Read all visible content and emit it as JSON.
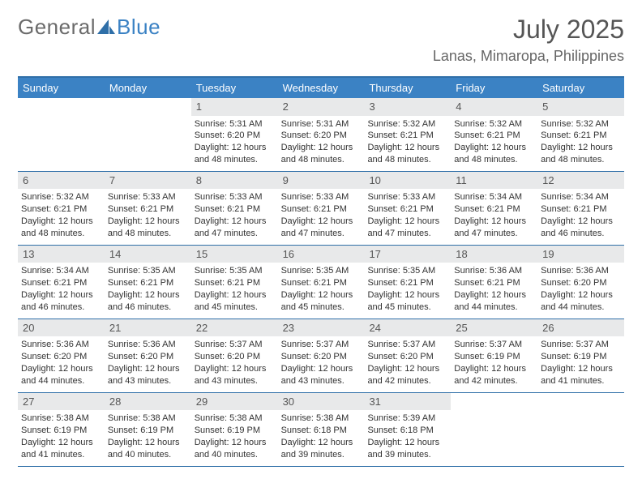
{
  "logo": {
    "word1": "General",
    "word2": "Blue"
  },
  "title": "July 2025",
  "location": "Lanas, Mimaropa, Philippines",
  "colors": {
    "header_bg": "#3b82c4",
    "header_text": "#ffffff",
    "daynum_bg": "#e8e9ea",
    "border": "#2f6fa8",
    "body_text": "#333333"
  },
  "weekdays": [
    "Sunday",
    "Monday",
    "Tuesday",
    "Wednesday",
    "Thursday",
    "Friday",
    "Saturday"
  ],
  "weeks": [
    [
      null,
      null,
      {
        "n": "1",
        "sr": "5:31 AM",
        "ss": "6:20 PM",
        "dl": "12 hours and 48 minutes."
      },
      {
        "n": "2",
        "sr": "5:31 AM",
        "ss": "6:20 PM",
        "dl": "12 hours and 48 minutes."
      },
      {
        "n": "3",
        "sr": "5:32 AM",
        "ss": "6:21 PM",
        "dl": "12 hours and 48 minutes."
      },
      {
        "n": "4",
        "sr": "5:32 AM",
        "ss": "6:21 PM",
        "dl": "12 hours and 48 minutes."
      },
      {
        "n": "5",
        "sr": "5:32 AM",
        "ss": "6:21 PM",
        "dl": "12 hours and 48 minutes."
      }
    ],
    [
      {
        "n": "6",
        "sr": "5:32 AM",
        "ss": "6:21 PM",
        "dl": "12 hours and 48 minutes."
      },
      {
        "n": "7",
        "sr": "5:33 AM",
        "ss": "6:21 PM",
        "dl": "12 hours and 48 minutes."
      },
      {
        "n": "8",
        "sr": "5:33 AM",
        "ss": "6:21 PM",
        "dl": "12 hours and 47 minutes."
      },
      {
        "n": "9",
        "sr": "5:33 AM",
        "ss": "6:21 PM",
        "dl": "12 hours and 47 minutes."
      },
      {
        "n": "10",
        "sr": "5:33 AM",
        "ss": "6:21 PM",
        "dl": "12 hours and 47 minutes."
      },
      {
        "n": "11",
        "sr": "5:34 AM",
        "ss": "6:21 PM",
        "dl": "12 hours and 47 minutes."
      },
      {
        "n": "12",
        "sr": "5:34 AM",
        "ss": "6:21 PM",
        "dl": "12 hours and 46 minutes."
      }
    ],
    [
      {
        "n": "13",
        "sr": "5:34 AM",
        "ss": "6:21 PM",
        "dl": "12 hours and 46 minutes."
      },
      {
        "n": "14",
        "sr": "5:35 AM",
        "ss": "6:21 PM",
        "dl": "12 hours and 46 minutes."
      },
      {
        "n": "15",
        "sr": "5:35 AM",
        "ss": "6:21 PM",
        "dl": "12 hours and 45 minutes."
      },
      {
        "n": "16",
        "sr": "5:35 AM",
        "ss": "6:21 PM",
        "dl": "12 hours and 45 minutes."
      },
      {
        "n": "17",
        "sr": "5:35 AM",
        "ss": "6:21 PM",
        "dl": "12 hours and 45 minutes."
      },
      {
        "n": "18",
        "sr": "5:36 AM",
        "ss": "6:21 PM",
        "dl": "12 hours and 44 minutes."
      },
      {
        "n": "19",
        "sr": "5:36 AM",
        "ss": "6:20 PM",
        "dl": "12 hours and 44 minutes."
      }
    ],
    [
      {
        "n": "20",
        "sr": "5:36 AM",
        "ss": "6:20 PM",
        "dl": "12 hours and 44 minutes."
      },
      {
        "n": "21",
        "sr": "5:36 AM",
        "ss": "6:20 PM",
        "dl": "12 hours and 43 minutes."
      },
      {
        "n": "22",
        "sr": "5:37 AM",
        "ss": "6:20 PM",
        "dl": "12 hours and 43 minutes."
      },
      {
        "n": "23",
        "sr": "5:37 AM",
        "ss": "6:20 PM",
        "dl": "12 hours and 43 minutes."
      },
      {
        "n": "24",
        "sr": "5:37 AM",
        "ss": "6:20 PM",
        "dl": "12 hours and 42 minutes."
      },
      {
        "n": "25",
        "sr": "5:37 AM",
        "ss": "6:19 PM",
        "dl": "12 hours and 42 minutes."
      },
      {
        "n": "26",
        "sr": "5:37 AM",
        "ss": "6:19 PM",
        "dl": "12 hours and 41 minutes."
      }
    ],
    [
      {
        "n": "27",
        "sr": "5:38 AM",
        "ss": "6:19 PM",
        "dl": "12 hours and 41 minutes."
      },
      {
        "n": "28",
        "sr": "5:38 AM",
        "ss": "6:19 PM",
        "dl": "12 hours and 40 minutes."
      },
      {
        "n": "29",
        "sr": "5:38 AM",
        "ss": "6:19 PM",
        "dl": "12 hours and 40 minutes."
      },
      {
        "n": "30",
        "sr": "5:38 AM",
        "ss": "6:18 PM",
        "dl": "12 hours and 39 minutes."
      },
      {
        "n": "31",
        "sr": "5:39 AM",
        "ss": "6:18 PM",
        "dl": "12 hours and 39 minutes."
      },
      null,
      null
    ]
  ],
  "labels": {
    "sunrise": "Sunrise:",
    "sunset": "Sunset:",
    "daylight": "Daylight:"
  }
}
